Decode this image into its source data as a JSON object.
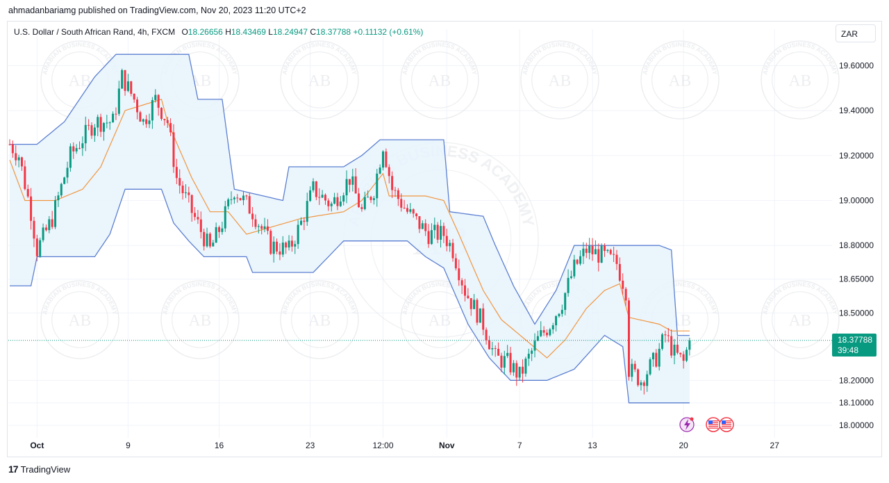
{
  "header": {
    "published_line": "ahmadanbariamg published on TradingView.com, Nov 20, 2023 11:20 UTC+2"
  },
  "legend": {
    "symbol": "U.S. Dollar / South African Rand, 4h, FXCM",
    "o_label": "O",
    "o_value": "18.26656",
    "h_label": "H",
    "h_value": "18.43469",
    "l_label": "L",
    "l_value": "18.24947",
    "c_label": "C",
    "c_value": "18.37788",
    "change": "+0.11132 (+0.61%)"
  },
  "currency": "ZAR",
  "price_tag": {
    "price": "18.37788",
    "countdown": "39:48"
  },
  "footer": {
    "brand": "TradingView",
    "logo_glyph": "17"
  },
  "watermark": {
    "text": "ARABIAN BUSINESS ACADEMY",
    "initials": "AB"
  },
  "colors": {
    "up": "#089981",
    "down": "#f23645",
    "channel": "#5b7fd1",
    "channel_fill": "#e8f3fb",
    "baseline": "#f0963f",
    "grid": "#f0f3fa",
    "last_price_line": "#089981"
  },
  "icons": [
    "lightning-event-icon",
    "us-flag-event-icon",
    "us-flag-event-icon"
  ],
  "chart_data": {
    "type": "candlestick",
    "ylim": [
      17.96,
      19.7
    ],
    "y_axis_ticks": [
      {
        "value": 19.6,
        "label": "19.60000"
      },
      {
        "value": 19.4,
        "label": "19.40000"
      },
      {
        "value": 19.2,
        "label": "19.20000"
      },
      {
        "value": 19.0,
        "label": "19.00000"
      },
      {
        "value": 18.8,
        "label": "18.80000"
      },
      {
        "value": 18.65,
        "label": "18.65000"
      },
      {
        "value": 18.5,
        "label": "18.50000"
      },
      {
        "value": 18.2,
        "label": "18.20000"
      },
      {
        "value": 18.1,
        "label": "18.10000"
      },
      {
        "value": 18.0,
        "label": "18.00000"
      }
    ],
    "x_axis_ticks": [
      {
        "label": "Oct",
        "bar": 9,
        "bold": true
      },
      {
        "label": "9",
        "bar": 39,
        "bold": false
      },
      {
        "label": "16",
        "bar": 69,
        "bold": false
      },
      {
        "label": "23",
        "bar": 99,
        "bold": false
      },
      {
        "label": "12:00",
        "bar": 123,
        "bold": false
      },
      {
        "label": "Nov",
        "bar": 144,
        "bold": true
      },
      {
        "label": "7",
        "bar": 168,
        "bold": false
      },
      {
        "label": "13",
        "bar": 192,
        "bold": false
      },
      {
        "label": "20",
        "bar": 222,
        "bold": false
      },
      {
        "label": "27",
        "bar": 252,
        "bold": false
      }
    ],
    "bar_count": 255,
    "last_close": 18.37788,
    "channel_anchors": {
      "upper": [
        [
          0,
          19.25
        ],
        [
          5,
          19.25
        ],
        [
          9,
          19.25
        ],
        [
          18,
          19.35
        ],
        [
          28,
          19.55
        ],
        [
          35,
          19.65
        ],
        [
          45,
          19.65
        ],
        [
          59,
          19.65
        ],
        [
          62,
          19.45
        ],
        [
          70,
          19.45
        ],
        [
          74,
          19.05
        ],
        [
          90,
          19.0
        ],
        [
          92,
          19.15
        ],
        [
          110,
          19.15
        ],
        [
          116,
          19.2
        ],
        [
          122,
          19.27
        ],
        [
          131,
          19.27
        ],
        [
          143,
          19.27
        ],
        [
          145,
          18.95
        ],
        [
          156,
          18.93
        ],
        [
          160,
          18.8
        ],
        [
          166,
          18.62
        ],
        [
          173,
          18.45
        ],
        [
          180,
          18.6
        ],
        [
          186,
          18.8
        ],
        [
          197,
          18.8
        ],
        [
          214,
          18.8
        ],
        [
          218,
          18.78
        ],
        [
          220,
          18.4
        ],
        [
          224,
          18.4
        ]
      ],
      "lower": [
        [
          0,
          18.62
        ],
        [
          7,
          18.62
        ],
        [
          9,
          18.75
        ],
        [
          28,
          18.75
        ],
        [
          33,
          18.85
        ],
        [
          38,
          19.05
        ],
        [
          50,
          19.05
        ],
        [
          54,
          18.9
        ],
        [
          59,
          18.82
        ],
        [
          64,
          18.75
        ],
        [
          78,
          18.75
        ],
        [
          80,
          18.68
        ],
        [
          100,
          18.68
        ],
        [
          110,
          18.82
        ],
        [
          131,
          18.82
        ],
        [
          137,
          18.75
        ],
        [
          143,
          18.7
        ],
        [
          151,
          18.45
        ],
        [
          158,
          18.3
        ],
        [
          165,
          18.2
        ],
        [
          177,
          18.2
        ],
        [
          186,
          18.25
        ],
        [
          196,
          18.4
        ],
        [
          202,
          18.35
        ],
        [
          204,
          18.1
        ],
        [
          224,
          18.1
        ]
      ],
      "baseline": [
        [
          0,
          19.18
        ],
        [
          5,
          19.0
        ],
        [
          9,
          19.0
        ],
        [
          15,
          19.0
        ],
        [
          24,
          19.05
        ],
        [
          30,
          19.15
        ],
        [
          38,
          19.4
        ],
        [
          50,
          19.45
        ],
        [
          52,
          19.35
        ],
        [
          60,
          19.1
        ],
        [
          66,
          18.95
        ],
        [
          72,
          18.95
        ],
        [
          78,
          18.85
        ],
        [
          96,
          18.92
        ],
        [
          110,
          18.95
        ],
        [
          116,
          19.0
        ],
        [
          123,
          19.12
        ],
        [
          125,
          19.02
        ],
        [
          137,
          19.02
        ],
        [
          143,
          19.0
        ],
        [
          148,
          18.85
        ],
        [
          156,
          18.6
        ],
        [
          162,
          18.47
        ],
        [
          170,
          18.38
        ],
        [
          177,
          18.3
        ],
        [
          183,
          18.38
        ],
        [
          190,
          18.52
        ],
        [
          196,
          18.6
        ],
        [
          201,
          18.63
        ],
        [
          204,
          18.48
        ],
        [
          214,
          18.45
        ],
        [
          218,
          18.42
        ],
        [
          224,
          18.42
        ]
      ]
    },
    "price_path": [
      [
        0,
        19.25
      ],
      [
        3,
        19.2
      ],
      [
        7,
        18.95
      ],
      [
        9,
        18.78
      ],
      [
        14,
        18.92
      ],
      [
        20,
        19.2
      ],
      [
        28,
        19.35
      ],
      [
        34,
        19.35
      ],
      [
        37,
        19.55
      ],
      [
        41,
        19.45
      ],
      [
        44,
        19.35
      ],
      [
        48,
        19.45
      ],
      [
        52,
        19.35
      ],
      [
        55,
        19.1
      ],
      [
        60,
        18.95
      ],
      [
        66,
        18.78
      ],
      [
        70,
        18.9
      ],
      [
        74,
        19.05
      ],
      [
        80,
        18.95
      ],
      [
        86,
        18.8
      ],
      [
        92,
        18.78
      ],
      [
        96,
        18.9
      ],
      [
        100,
        19.05
      ],
      [
        106,
        18.98
      ],
      [
        112,
        19.1
      ],
      [
        116,
        18.95
      ],
      [
        120,
        19.05
      ],
      [
        123,
        19.25
      ],
      [
        126,
        19.05
      ],
      [
        131,
        18.95
      ],
      [
        138,
        18.85
      ],
      [
        143,
        18.85
      ],
      [
        146,
        18.78
      ],
      [
        150,
        18.6
      ],
      [
        156,
        18.45
      ],
      [
        160,
        18.3
      ],
      [
        164,
        18.28
      ],
      [
        168,
        18.22
      ],
      [
        171,
        18.3
      ],
      [
        174,
        18.38
      ],
      [
        178,
        18.45
      ],
      [
        182,
        18.55
      ],
      [
        186,
        18.7
      ],
      [
        190,
        18.78
      ],
      [
        196,
        18.75
      ],
      [
        200,
        18.72
      ],
      [
        203,
        18.6
      ],
      [
        204,
        18.25
      ],
      [
        208,
        18.2
      ],
      [
        213,
        18.3
      ],
      [
        216,
        18.4
      ],
      [
        219,
        18.32
      ],
      [
        222,
        18.28
      ],
      [
        224,
        18.38
      ]
    ]
  }
}
